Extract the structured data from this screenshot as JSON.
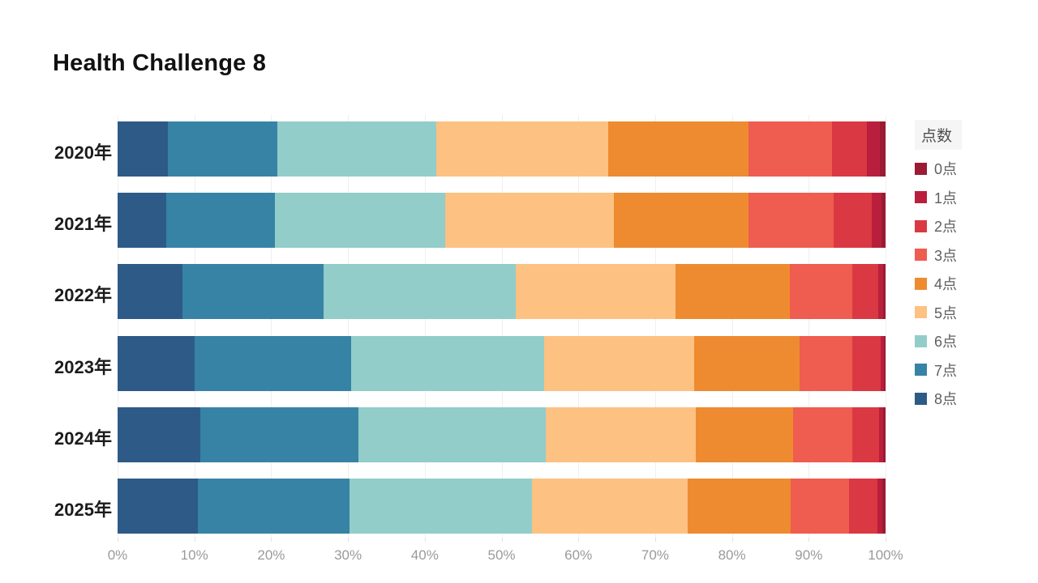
{
  "title": "Health Challenge 8",
  "chart_data": {
    "type": "bar",
    "orientation": "horizontal",
    "stacked": true,
    "unit": "percent",
    "title": "Health Challenge 8",
    "legend_title": "点数",
    "legend_position": "right",
    "grid": true,
    "xlim": [
      0,
      100
    ],
    "x_ticks": [
      "0%",
      "10%",
      "20%",
      "30%",
      "40%",
      "50%",
      "60%",
      "70%",
      "80%",
      "90%",
      "100%"
    ],
    "categories": [
      "2020年",
      "2021年",
      "2022年",
      "2023年",
      "2024年",
      "2025年"
    ],
    "series": [
      {
        "name": "8点",
        "color": "#2e5a87",
        "values": [
          6.5,
          6.3,
          8.4,
          10.0,
          10.8,
          10.5
        ]
      },
      {
        "name": "7点",
        "color": "#3783a5",
        "values": [
          14.3,
          14.2,
          18.4,
          20.4,
          20.6,
          19.7
        ]
      },
      {
        "name": "6点",
        "color": "#92cdca",
        "values": [
          20.7,
          22.2,
          25.0,
          25.1,
          24.4,
          23.8
        ]
      },
      {
        "name": "5点",
        "color": "#fdc182",
        "values": [
          22.4,
          21.9,
          20.8,
          19.6,
          19.5,
          20.2
        ]
      },
      {
        "name": "4点",
        "color": "#ee8b30",
        "values": [
          18.3,
          17.6,
          14.9,
          13.7,
          12.7,
          13.4
        ]
      },
      {
        "name": "3点",
        "color": "#ef5c50",
        "values": [
          10.8,
          11.0,
          8.2,
          6.9,
          7.7,
          7.7
        ]
      },
      {
        "name": "2点",
        "color": "#da3843",
        "values": [
          4.6,
          5.0,
          3.4,
          3.7,
          3.5,
          3.6
        ]
      },
      {
        "name": "1点",
        "color": "#b91f3d",
        "values": [
          1.7,
          1.3,
          0.6,
          0.4,
          0.5,
          0.7
        ]
      },
      {
        "name": "0点",
        "color": "#9a1b33",
        "values": [
          0.7,
          0.5,
          0.3,
          0.2,
          0.3,
          0.4
        ]
      }
    ],
    "legend_order": [
      "0点",
      "1点",
      "2点",
      "3点",
      "4点",
      "5点",
      "6点",
      "7点",
      "8点"
    ]
  }
}
